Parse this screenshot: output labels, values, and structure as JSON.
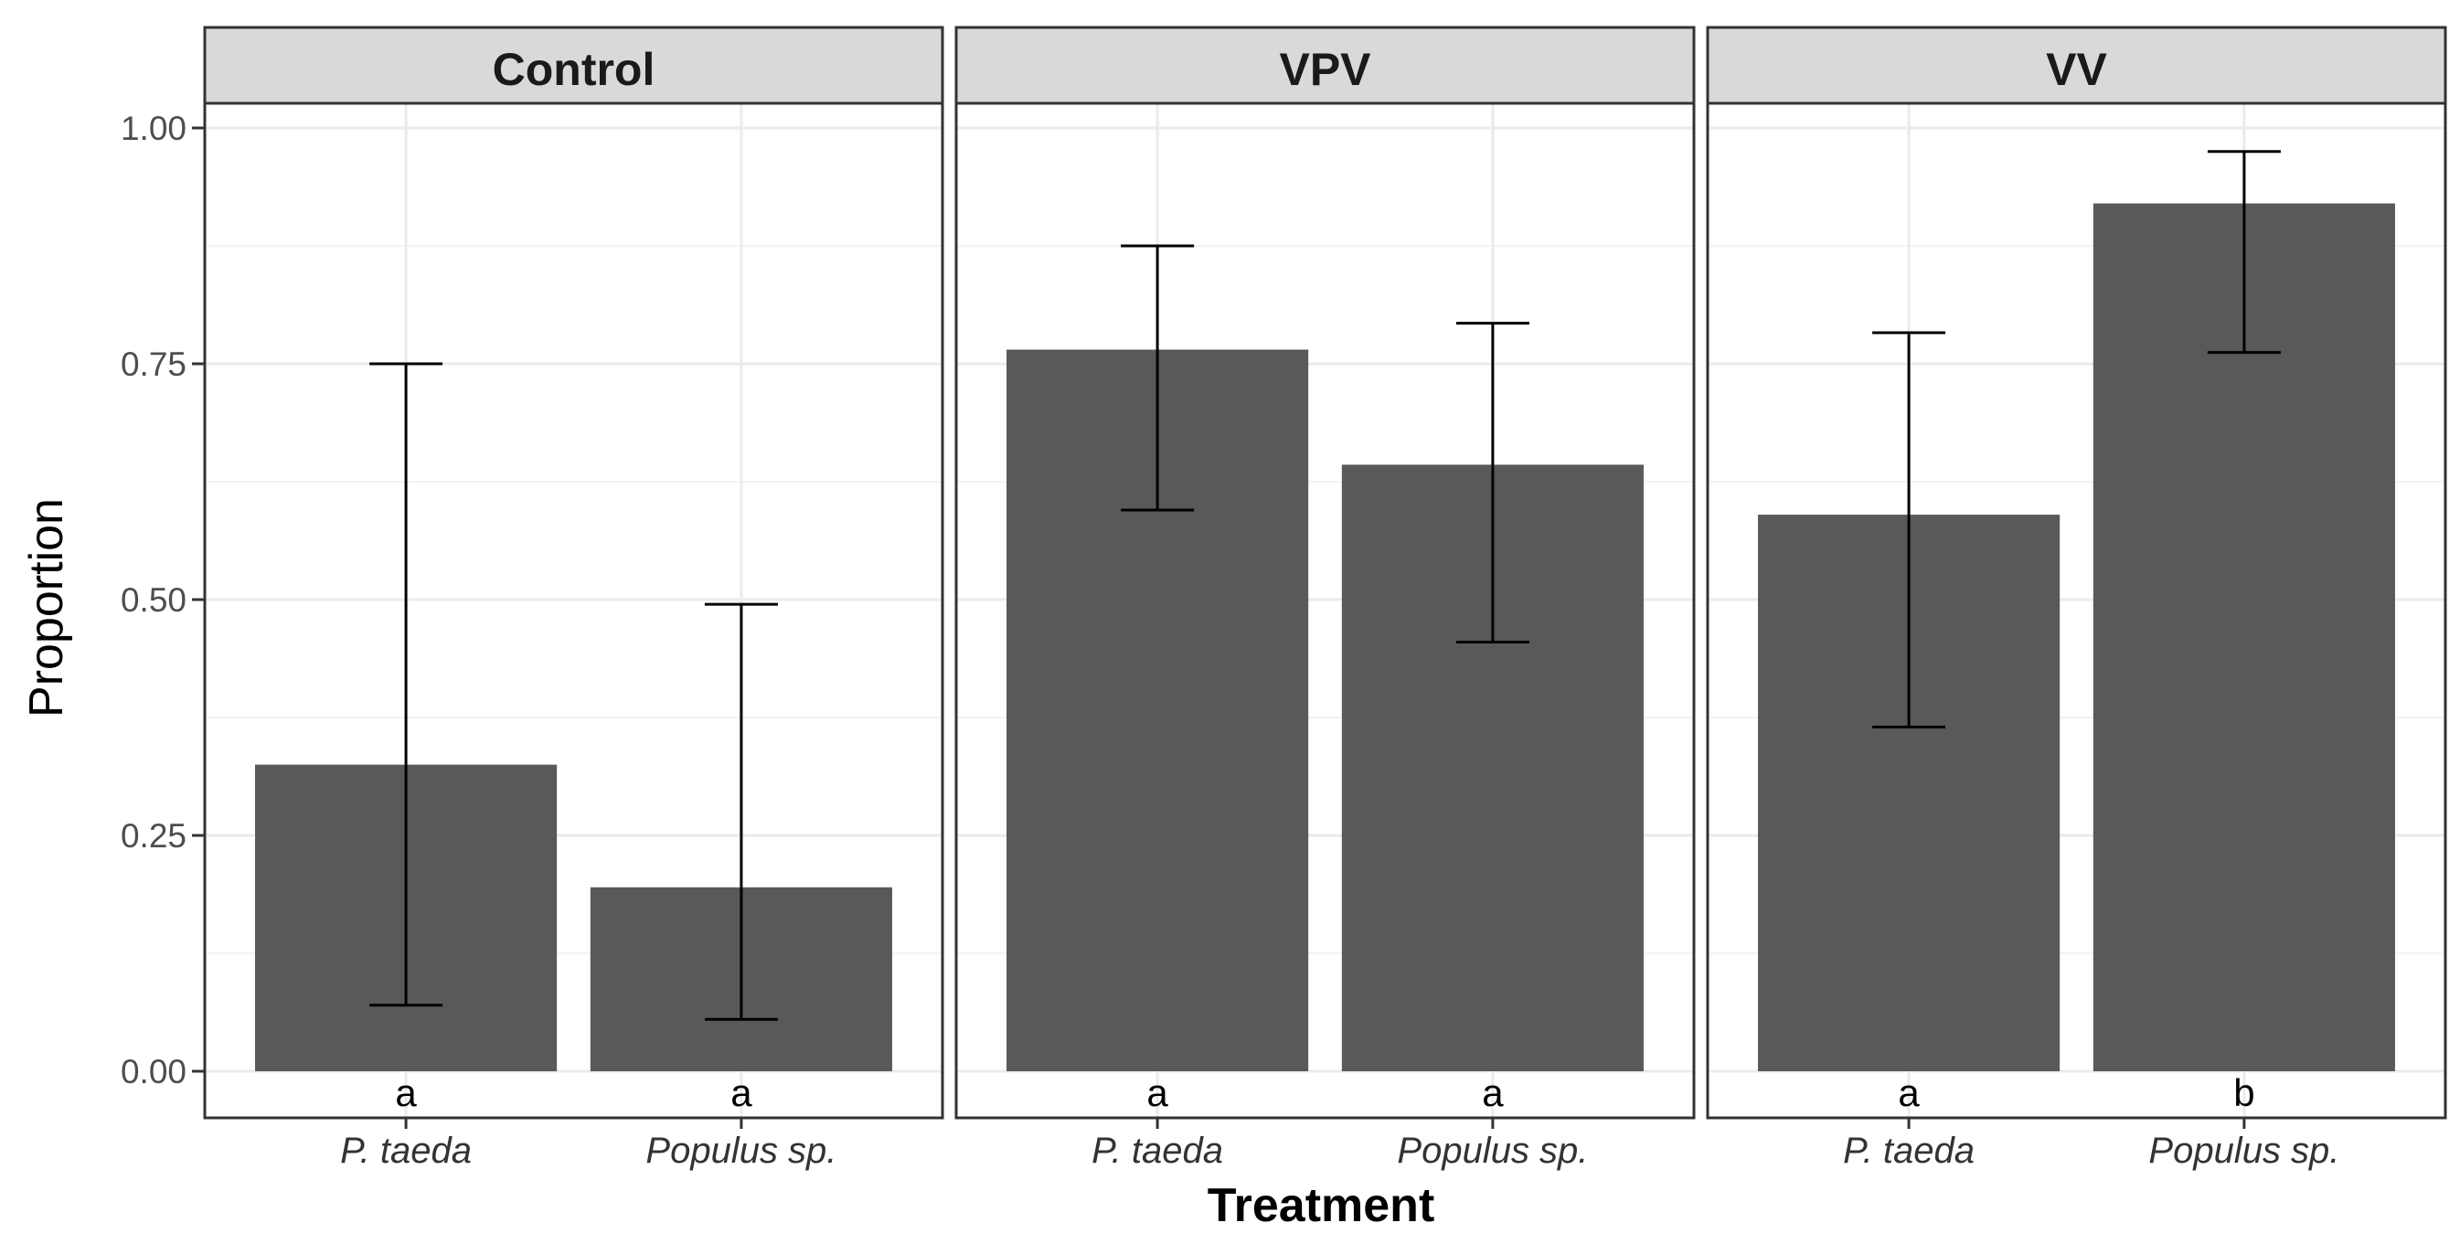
{
  "chart_data": {
    "type": "bar",
    "xlabel": "Treatment",
    "ylabel": "Proportion",
    "ylim": [
      0,
      1.05
    ],
    "yticks": [
      "0.00",
      "0.25",
      "0.50",
      "0.75",
      "1.00"
    ],
    "grid": true,
    "bar_color": "#595959",
    "facets": [
      {
        "name": "Control",
        "categories": [
          "P. taeda",
          "Populus sp."
        ],
        "values": [
          0.325,
          0.195
        ],
        "error_low": [
          0.07,
          0.055
        ],
        "error_high": [
          0.75,
          0.495
        ],
        "significance": [
          "a",
          "a"
        ]
      },
      {
        "name": "VPV",
        "categories": [
          "P. taeda",
          "Populus sp."
        ],
        "values": [
          0.765,
          0.643
        ],
        "error_low": [
          0.595,
          0.455
        ],
        "error_high": [
          0.875,
          0.793
        ],
        "significance": [
          "a",
          "a"
        ]
      },
      {
        "name": "VV",
        "categories": [
          "P. taeda",
          "Populus sp."
        ],
        "values": [
          0.59,
          0.92
        ],
        "error_low": [
          0.365,
          0.762
        ],
        "error_high": [
          0.783,
          0.975
        ],
        "significance": [
          "a",
          "b"
        ]
      }
    ]
  }
}
